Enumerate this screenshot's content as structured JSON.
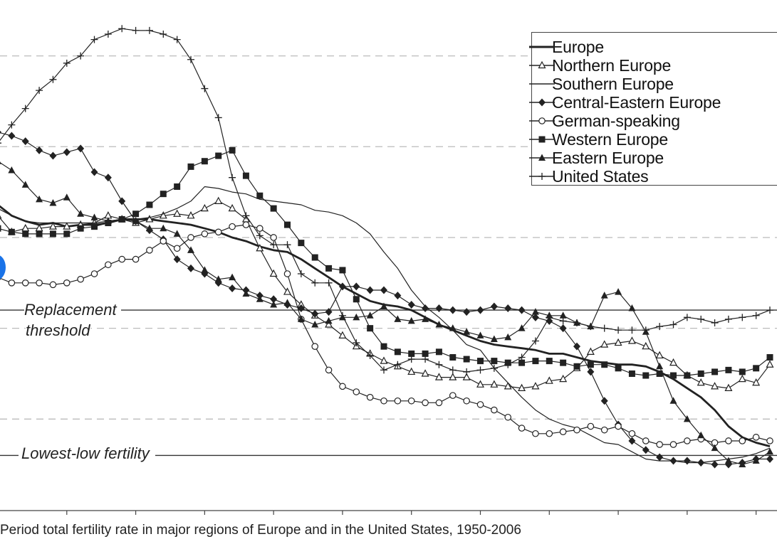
{
  "caption": "Period total fertility rate in major regions of Europe and in the United States, 1950-2006",
  "annotations": {
    "replacement_1": "Replacement",
    "replacement_2": "threshold",
    "lowest_low": "Lowest-low fertility"
  },
  "colors": {
    "lines": "#222222",
    "grid": "#bbbbbb",
    "accent_dot": "#1a73e8"
  },
  "chart_data": {
    "type": "line",
    "title": "",
    "xlabel": "",
    "ylabel": "",
    "xlim": [
      1950,
      2006
    ],
    "ylim": [
      1.0,
      3.8
    ],
    "grid": "horizontal dashed",
    "legend_position": "top-right",
    "x": [
      1950,
      1951,
      1952,
      1953,
      1954,
      1955,
      1956,
      1957,
      1958,
      1959,
      1960,
      1961,
      1962,
      1963,
      1964,
      1965,
      1966,
      1967,
      1968,
      1969,
      1970,
      1971,
      1972,
      1973,
      1974,
      1975,
      1976,
      1977,
      1978,
      1979,
      1980,
      1981,
      1982,
      1983,
      1984,
      1985,
      1986,
      1987,
      1988,
      1989,
      1990,
      1991,
      1992,
      1993,
      1994,
      1995,
      1996,
      1997,
      1998,
      1999,
      2000,
      2001,
      2002,
      2003,
      2004,
      2005,
      2006
    ],
    "reference_lines": [
      {
        "label": "Replacement threshold",
        "value": 2.1
      },
      {
        "label": "Lowest-low fertility",
        "value": 1.3
      }
    ],
    "series": [
      {
        "name": "Europe",
        "marker": "none",
        "values": [
          2.68,
          2.62,
          2.59,
          2.57,
          2.58,
          2.56,
          2.57,
          2.57,
          2.58,
          2.6,
          2.6,
          2.6,
          2.59,
          2.58,
          2.57,
          2.55,
          2.53,
          2.5,
          2.48,
          2.45,
          2.43,
          2.42,
          2.38,
          2.33,
          2.28,
          2.23,
          2.19,
          2.15,
          2.13,
          2.12,
          2.1,
          2.06,
          2.02,
          1.99,
          1.96,
          1.93,
          1.91,
          1.9,
          1.89,
          1.88,
          1.86,
          1.86,
          1.84,
          1.82,
          1.81,
          1.8,
          1.8,
          1.79,
          1.76,
          1.72,
          1.67,
          1.62,
          1.55,
          1.46,
          1.4,
          1.37,
          1.35
        ]
      },
      {
        "name": "Northern Europe",
        "marker": "triangle-open",
        "values": [
          2.62,
          2.53,
          2.55,
          2.55,
          2.56,
          2.56,
          2.57,
          2.58,
          2.62,
          2.6,
          2.58,
          2.6,
          2.62,
          2.63,
          2.62,
          2.66,
          2.7,
          2.66,
          2.6,
          2.44,
          2.3,
          2.2,
          2.13,
          2.07,
          2.02,
          1.96,
          1.9,
          1.86,
          1.82,
          1.79,
          1.76,
          1.75,
          1.73,
          1.73,
          1.73,
          1.69,
          1.69,
          1.68,
          1.67,
          1.68,
          1.71,
          1.72,
          1.78,
          1.87,
          1.91,
          1.92,
          1.93,
          1.9,
          1.85,
          1.81,
          1.74,
          1.7,
          1.68,
          1.67,
          1.72,
          1.7,
          1.8
        ]
      },
      {
        "name": "Southern Europe",
        "marker": "dash",
        "values": [
          2.66,
          2.62,
          2.59,
          2.58,
          2.58,
          2.58,
          2.58,
          2.58,
          2.59,
          2.6,
          2.6,
          2.61,
          2.63,
          2.66,
          2.7,
          2.78,
          2.77,
          2.75,
          2.74,
          2.71,
          2.7,
          2.69,
          2.68,
          2.65,
          2.64,
          2.62,
          2.58,
          2.52,
          2.42,
          2.33,
          2.21,
          2.12,
          2.06,
          1.99,
          1.91,
          1.88,
          1.78,
          1.7,
          1.62,
          1.55,
          1.5,
          1.47,
          1.45,
          1.41,
          1.37,
          1.36,
          1.32,
          1.28,
          1.27,
          1.27,
          1.26,
          1.26,
          1.27,
          1.28,
          1.29,
          1.31,
          1.34
        ]
      },
      {
        "name": "Central-Eastern Europe",
        "marker": "diamond-filled",
        "values": [
          3.08,
          3.06,
          3.03,
          2.98,
          2.95,
          2.97,
          2.99,
          2.86,
          2.83,
          2.7,
          2.59,
          2.54,
          2.49,
          2.38,
          2.33,
          2.3,
          2.25,
          2.22,
          2.21,
          2.18,
          2.16,
          2.13,
          2.11,
          2.08,
          2.09,
          2.23,
          2.23,
          2.21,
          2.21,
          2.18,
          2.13,
          2.11,
          2.11,
          2.1,
          2.09,
          2.1,
          2.12,
          2.11,
          2.1,
          2.06,
          2.04,
          2.0,
          1.9,
          1.76,
          1.6,
          1.47,
          1.38,
          1.33,
          1.29,
          1.27,
          1.27,
          1.26,
          1.25,
          1.25,
          1.26,
          1.28,
          1.28
        ]
      },
      {
        "name": "German-speaking",
        "marker": "circle-open",
        "values": [
          2.28,
          2.25,
          2.25,
          2.25,
          2.24,
          2.25,
          2.27,
          2.3,
          2.35,
          2.38,
          2.38,
          2.43,
          2.48,
          2.44,
          2.5,
          2.52,
          2.53,
          2.56,
          2.57,
          2.55,
          2.5,
          2.3,
          2.05,
          1.9,
          1.77,
          1.68,
          1.65,
          1.62,
          1.6,
          1.6,
          1.6,
          1.59,
          1.59,
          1.63,
          1.6,
          1.58,
          1.55,
          1.51,
          1.45,
          1.42,
          1.42,
          1.43,
          1.44,
          1.46,
          1.44,
          1.46,
          1.42,
          1.38,
          1.36,
          1.36,
          1.38,
          1.39,
          1.37,
          1.38,
          1.38,
          1.4,
          1.38
        ]
      },
      {
        "name": "Western Europe",
        "marker": "square-filled",
        "values": [
          2.55,
          2.53,
          2.52,
          2.52,
          2.52,
          2.52,
          2.55,
          2.56,
          2.58,
          2.6,
          2.63,
          2.68,
          2.74,
          2.78,
          2.89,
          2.92,
          2.95,
          2.98,
          2.84,
          2.73,
          2.66,
          2.57,
          2.47,
          2.39,
          2.33,
          2.32,
          2.16,
          2.0,
          1.9,
          1.87,
          1.86,
          1.86,
          1.87,
          1.84,
          1.83,
          1.82,
          1.82,
          1.81,
          1.81,
          1.82,
          1.82,
          1.81,
          1.79,
          1.8,
          1.8,
          1.78,
          1.75,
          1.74,
          1.75,
          1.74,
          1.74,
          1.75,
          1.76,
          1.77,
          1.76,
          1.78,
          1.84
        ]
      },
      {
        "name": "Eastern Europe",
        "marker": "triangle-filled",
        "values": [
          2.92,
          2.87,
          2.79,
          2.71,
          2.69,
          2.72,
          2.63,
          2.61,
          2.59,
          2.6,
          2.59,
          2.55,
          2.55,
          2.52,
          2.43,
          2.32,
          2.27,
          2.28,
          2.19,
          2.16,
          2.13,
          2.14,
          2.05,
          2.02,
          2.04,
          2.06,
          2.06,
          2.07,
          2.12,
          2.05,
          2.04,
          2.05,
          2.02,
          2.0,
          1.98,
          1.96,
          1.94,
          1.95,
          2.0,
          2.09,
          2.07,
          2.07,
          2.03,
          2.01,
          2.18,
          2.2,
          2.11,
          1.98,
          1.79,
          1.6,
          1.5,
          1.41,
          1.34,
          1.27,
          1.25,
          1.27,
          1.32
        ]
      },
      {
        "name": "United States",
        "marker": "plus",
        "values": [
          3.02,
          3.12,
          3.21,
          3.31,
          3.37,
          3.46,
          3.5,
          3.59,
          3.62,
          3.65,
          3.64,
          3.64,
          3.62,
          3.59,
          3.48,
          3.32,
          3.16,
          2.83,
          2.62,
          2.51,
          2.46,
          2.46,
          2.3,
          2.25,
          2.25,
          2.07,
          1.92,
          1.85,
          1.77,
          1.8,
          1.83,
          1.83,
          1.8,
          1.77,
          1.76,
          1.77,
          1.78,
          1.8,
          1.84,
          1.93,
          2.06,
          2.04,
          2.03,
          2.01,
          2.0,
          1.99,
          1.99,
          1.99,
          2.01,
          2.02,
          2.06,
          2.05,
          2.03,
          2.05,
          2.06,
          2.07,
          2.1
        ]
      }
    ]
  }
}
